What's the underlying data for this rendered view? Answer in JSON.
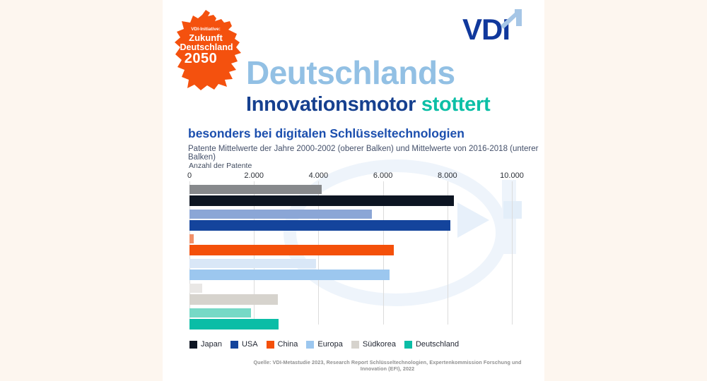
{
  "page": {
    "background_color": "#fdf6ef",
    "card_color": "#ffffff"
  },
  "header": {
    "initiative_badge": {
      "line1": "VDI-Initiative:",
      "line2": "Zukunft",
      "line3": "Deutschland",
      "line4": "2050",
      "map_color": "#f4510e",
      "text_color": "#ffffff"
    },
    "logo": {
      "text": "VDI",
      "color": "#10389c",
      "bracket_color": "#a6c6e6"
    },
    "title": {
      "text": "Deutschlands",
      "color": "#92c0e4"
    },
    "subtitle": {
      "part1": "Innovationsmotor",
      "part1_color": "#16408f",
      "part2": " stottert",
      "part2_color": "#0cbfa6"
    }
  },
  "chart_heading": "besonders bei digitalen Schlüsseltechnologien",
  "chart_description": "Patente Mittelwerte der Jahre 2000-2002 (oberer Balken) und Mittelwerte von 2016-2018 (unterer Balken)",
  "chart_data": {
    "type": "bar",
    "orientation": "horizontal",
    "axis_title": "Anzahl der Patente",
    "xlim": [
      0,
      10000
    ],
    "x_ticks": [
      {
        "value": 0,
        "label": "0"
      },
      {
        "value": 2000,
        "label": "2.000"
      },
      {
        "value": 4000,
        "label": "4.000"
      },
      {
        "value": 6000,
        "label": "6.000"
      },
      {
        "value": 8000,
        "label": "8.000"
      },
      {
        "value": 10000,
        "label": "10.000"
      }
    ],
    "grid": true,
    "legend_position": "bottom",
    "series_periods": [
      "2000-2002 (oberer Balken)",
      "2016-2018 (unterer Balken)"
    ],
    "groups": [
      {
        "name": "Japan",
        "color_upper": "#87898c",
        "color": "#0d1522",
        "p2000_2002": 4100,
        "p2016_2018": 8200
      },
      {
        "name": "USA",
        "color_upper": "#8ba6d6",
        "color": "#14449c",
        "p2000_2002": 5650,
        "p2016_2018": 8100
      },
      {
        "name": "China",
        "color_upper": "#f29068",
        "color": "#f4500a",
        "p2000_2002": 130,
        "p2016_2018": 6340
      },
      {
        "name": "Europa",
        "color_upper": "#d9e7f7",
        "color": "#9cc7ef",
        "p2000_2002": 3920,
        "p2016_2018": 6200
      },
      {
        "name": "Südkorea",
        "color_upper": "#e9e7e5",
        "color": "#d6d3cd",
        "p2000_2002": 390,
        "p2016_2018": 2750
      },
      {
        "name": "Deutschland",
        "color_upper": "#76d9c6",
        "color": "#0abda6",
        "p2000_2002": 1900,
        "p2016_2018": 2760
      }
    ]
  },
  "footer": {
    "source": "Quelle: VDI-Metastudie 2023, Research Report Schlüsseltechnologien, Expertenkommission Forschung und Innovation (EFI), 2022"
  }
}
